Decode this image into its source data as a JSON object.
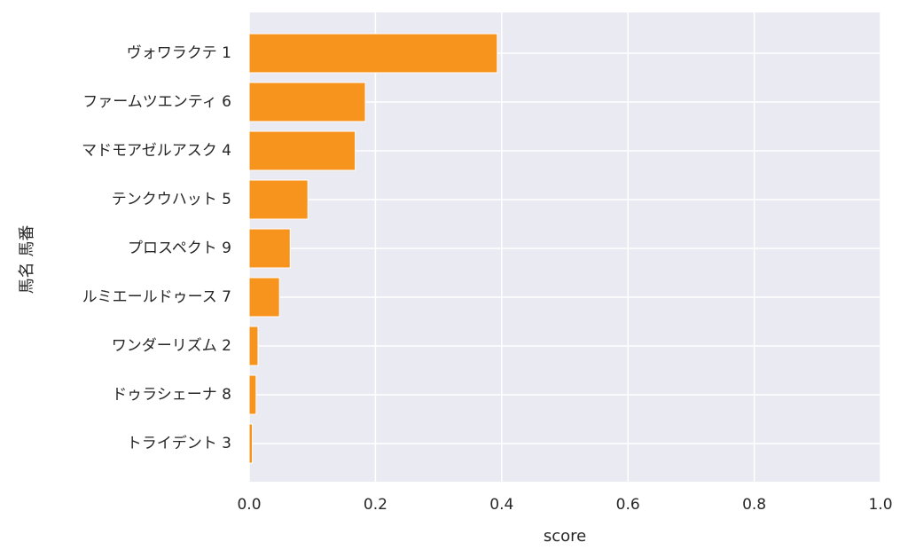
{
  "chart_data": {
    "type": "bar",
    "orientation": "horizontal",
    "categories": [
      "ヴォワラクテ 1",
      "ファームツエンティ 6",
      "マドモアゼルアスク 4",
      "テンクウハット 5",
      "プロスペクト 9",
      "ルミエールドゥース 7",
      "ワンダーリズム 2",
      "ドゥラシェーナ 8",
      "トライデント 3"
    ],
    "values": [
      0.393,
      0.184,
      0.168,
      0.093,
      0.065,
      0.048,
      0.014,
      0.011,
      0.005
    ],
    "xlabel": "score",
    "ylabel": "馬名 馬番",
    "xlim": [
      0,
      1.0
    ],
    "xticks": [
      "0.0",
      "0.2",
      "0.4",
      "0.6",
      "0.8",
      "1.0"
    ],
    "grid": true,
    "bar_color": "#f7941d",
    "background_color": "#eaeaf2"
  }
}
